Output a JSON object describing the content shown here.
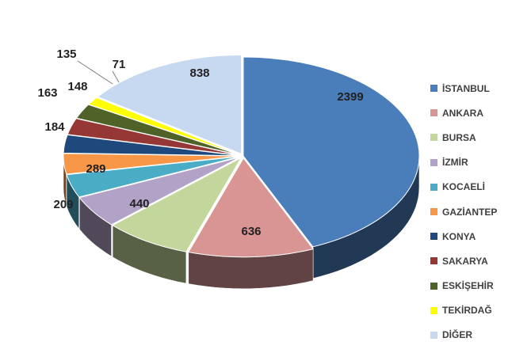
{
  "chart_data": {
    "type": "pie",
    "title": "",
    "categories": [
      "İSTANBUL",
      "ANKARA",
      "BURSA",
      "İZMİR",
      "KOCAELİ",
      "GAZİANTEP",
      "KONYA",
      "SAKARYA",
      "ESKİŞEHİR",
      "TEKİRDAĞ",
      "DİĞER"
    ],
    "values": [
      2399,
      636,
      440,
      289,
      209,
      184,
      163,
      148,
      135,
      71,
      838
    ],
    "colors": [
      "#4a7ebb",
      "#d99594",
      "#c3d69b",
      "#b3a2c7",
      "#4bacc6",
      "#f79646",
      "#1f497d",
      "#953735",
      "#4f6228",
      "#ffff00",
      "#c6d9f1"
    ],
    "legend_position": "right",
    "style": "3d-exploded"
  }
}
